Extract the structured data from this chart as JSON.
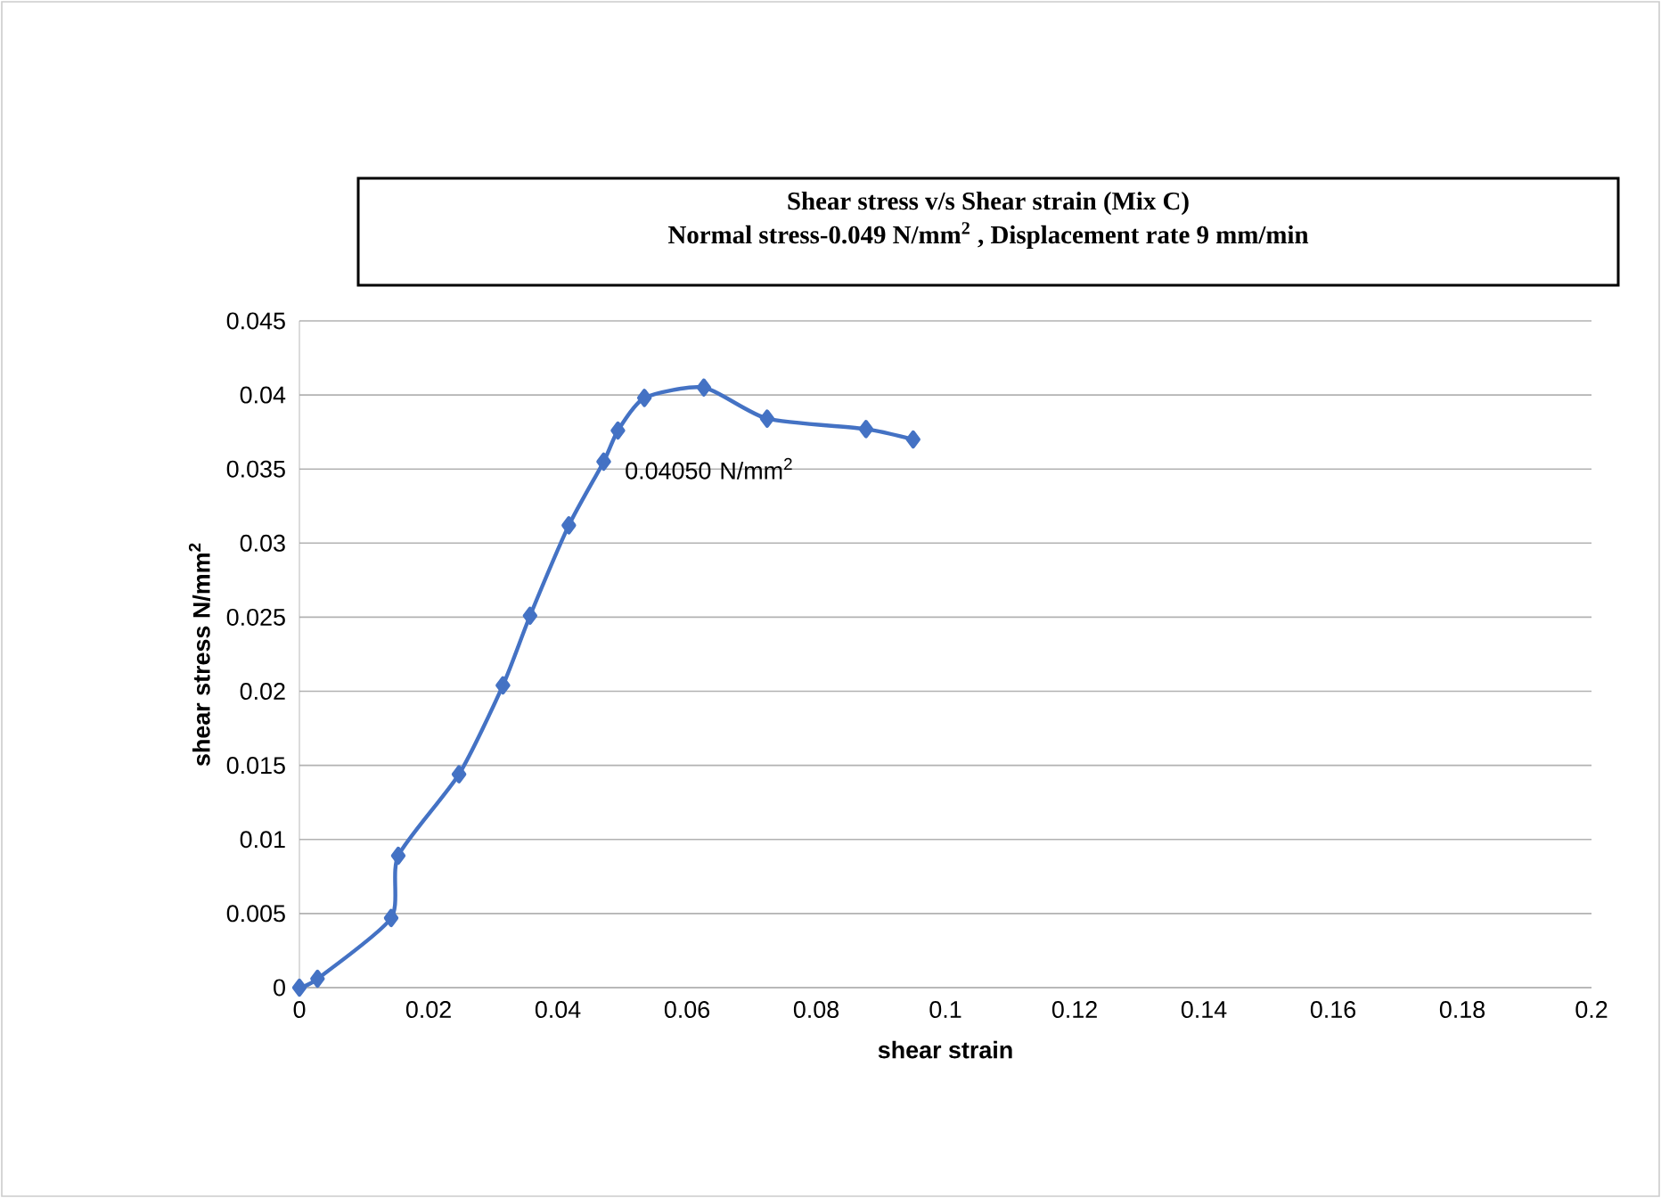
{
  "chart_data": {
    "type": "line",
    "title": "Shear stress v/s Shear strain (Mix C)",
    "subtitle": "Normal stress-0.049 N/mm$^{2}$ , Displacement rate 9 mm/min",
    "xlabel": "shear strain",
    "ylabel": "shear stress N/mm$^{2}$",
    "x": [
      0.0,
      0.0028,
      0.0142,
      0.0153,
      0.0247,
      0.0315,
      0.0357,
      0.0417,
      0.0471,
      0.0493,
      0.0534,
      0.0626,
      0.0724,
      0.0877,
      0.095
    ],
    "series": [
      {
        "color": "#4472c4",
        "values": [
          0.0,
          0.0006,
          0.0047,
          0.0089,
          0.0144,
          0.0204,
          0.0251,
          0.0312,
          0.0355,
          0.0376,
          0.0398,
          0.0405,
          0.0384,
          0.0377,
          0.037
        ]
      }
    ],
    "xlim": [
      0,
      0.2
    ],
    "ylim": [
      0,
      0.045
    ],
    "xticks": [
      0,
      0.02,
      0.04,
      0.06,
      0.08,
      0.1,
      0.12,
      0.14,
      0.16,
      0.18,
      0.2
    ],
    "yticks": [
      0,
      0.005,
      0.01,
      0.015,
      0.02,
      0.025,
      0.03,
      0.035,
      0.04,
      0.045
    ],
    "annotations": [
      {
        "text": "0.04050 N/mm$^{2}$",
        "x": 0.0626,
        "y": 0.0405
      }
    ],
    "grid": "y",
    "marker": "diamond",
    "line_style": "solid"
  }
}
